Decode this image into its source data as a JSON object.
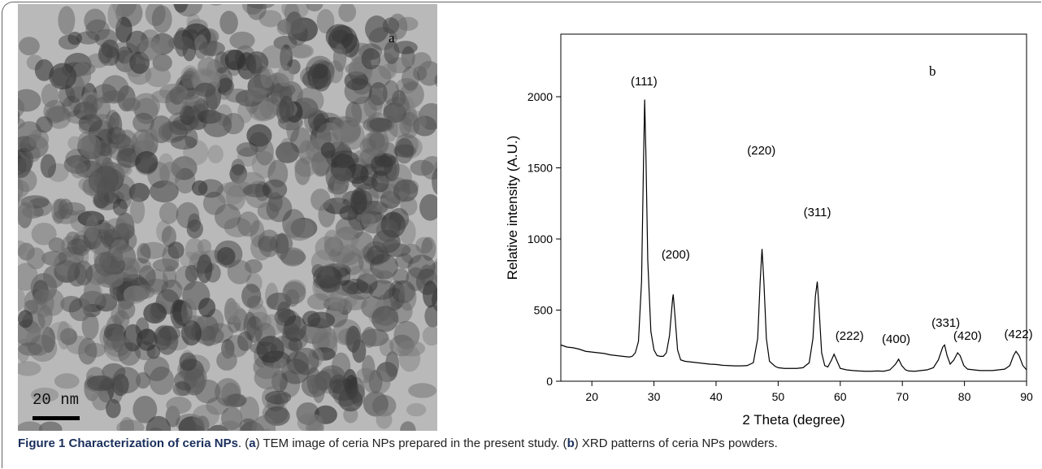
{
  "panel_a": {
    "label": "a",
    "scale_bar": "20 nm"
  },
  "chart_data": {
    "type": "line",
    "panel_label": "b",
    "x_label": "2 Theta (degree)",
    "y_label": "Relative intensity (A.U.)",
    "color": "#000000",
    "xlim": [
      15,
      90
    ],
    "xticks": [
      20,
      30,
      40,
      50,
      60,
      70,
      80,
      90
    ],
    "ylim": [
      0,
      2440
    ],
    "yticks": [
      0,
      500,
      1000,
      1500,
      2000
    ],
    "x": [
      15,
      16,
      17,
      18,
      19,
      20,
      21,
      22,
      23,
      24,
      25,
      26,
      26.5,
      27,
      27.5,
      28,
      28.3,
      28.5,
      28.7,
      29,
      29.5,
      30,
      30.5,
      31,
      31.5,
      32,
      32.5,
      33,
      33.1,
      33.4,
      33.8,
      34.3,
      35,
      36,
      37,
      38,
      39,
      40,
      41,
      42,
      43,
      44,
      45,
      46,
      46.7,
      47.1,
      47.4,
      47.7,
      48.1,
      48.6,
      49.5,
      50,
      51,
      52,
      53,
      54,
      55,
      55.6,
      56,
      56.3,
      56.6,
      57,
      57.5,
      58,
      58.6,
      59,
      59.4,
      60,
      61,
      62,
      63,
      64,
      65,
      66,
      67,
      68,
      68.9,
      69.4,
      69.9,
      70.5,
      71,
      72,
      73,
      74,
      75,
      75.8,
      76.5,
      76.8,
      77.2,
      77.7,
      78.3,
      78.9,
      79.3,
      79.9,
      80.5,
      81.5,
      82.5,
      83.5,
      84.5,
      85.5,
      86.5,
      87.3,
      87.9,
      88.3,
      88.8,
      89.4,
      90
    ],
    "values": [
      255,
      240,
      235,
      225,
      210,
      205,
      200,
      195,
      185,
      180,
      175,
      170,
      175,
      200,
      280,
      700,
      1500,
      1980,
      1600,
      850,
      350,
      220,
      180,
      175,
      175,
      200,
      320,
      580,
      610,
      450,
      220,
      150,
      140,
      135,
      130,
      125,
      120,
      118,
      112,
      110,
      108,
      108,
      110,
      130,
      300,
      700,
      930,
      700,
      300,
      140,
      105,
      95,
      90,
      90,
      90,
      95,
      130,
      300,
      600,
      700,
      500,
      200,
      110,
      100,
      150,
      190,
      150,
      90,
      80,
      75,
      72,
      70,
      70,
      72,
      70,
      80,
      120,
      155,
      110,
      80,
      72,
      70,
      75,
      80,
      95,
      150,
      240,
      255,
      180,
      120,
      150,
      200,
      180,
      110,
      85,
      80,
      75,
      75,
      75,
      80,
      85,
      110,
      180,
      210,
      180,
      110,
      80
    ],
    "annotations": [
      {
        "text": "(111)",
        "x": 28.4,
        "y": 2080
      },
      {
        "text": "(200)",
        "x": 33.5,
        "y": 863
      },
      {
        "text": "(220)",
        "x": 47.3,
        "y": 1594
      },
      {
        "text": "(311)",
        "x": 56.3,
        "y": 1160
      },
      {
        "text": "(222)",
        "x": 61.5,
        "y": 291
      },
      {
        "text": "(400)",
        "x": 69.0,
        "y": 269
      },
      {
        "text": "(331)",
        "x": 77.0,
        "y": 383
      },
      {
        "text": "(420)",
        "x": 80.5,
        "y": 291
      },
      {
        "text": "(422)",
        "x": 88.7,
        "y": 303
      }
    ]
  },
  "caption": [
    {
      "text": "Figure 1 Characterization of ceria NPs",
      "bold": true
    },
    {
      "text": ". (",
      "bold": false
    },
    {
      "text": "a",
      "bold": true
    },
    {
      "text": ") TEM image of ceria NPs prepared in the present study. (",
      "bold": false
    },
    {
      "text": "b",
      "bold": true
    },
    {
      "text": ") XRD patterns of ceria NPs powders.",
      "bold": false
    }
  ]
}
